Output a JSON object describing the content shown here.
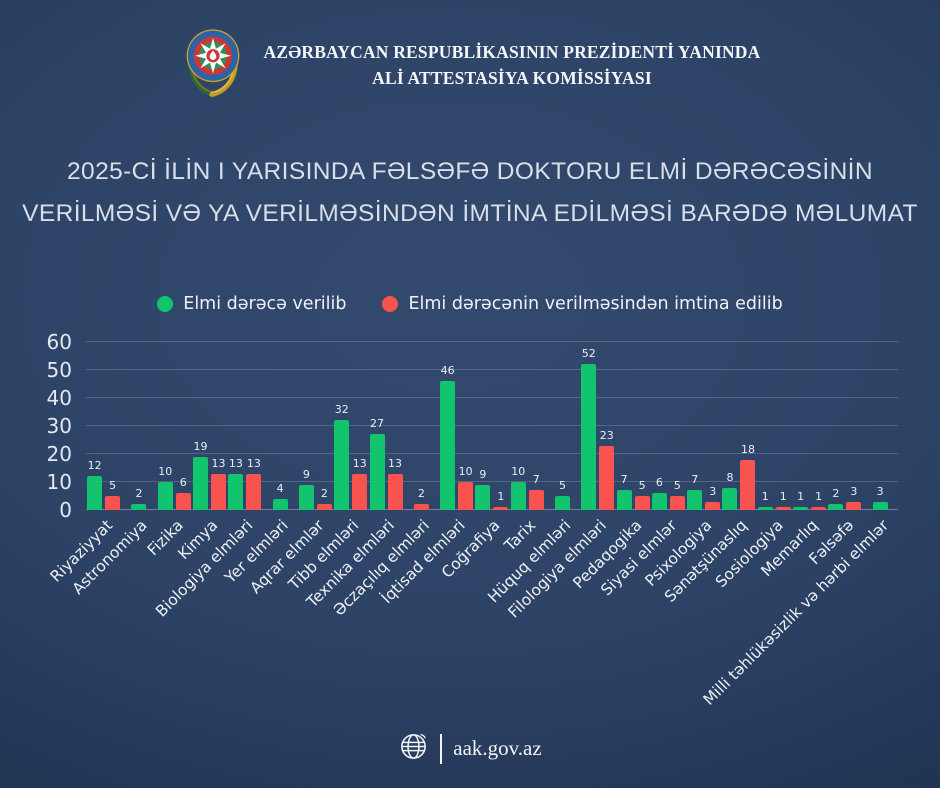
{
  "header": {
    "org_line1": "AZƏRBAYCAN RESPUBLİKASININ PREZİDENTİ YANINDA",
    "org_line2": "ALİ ATTESTASİYA KOMİSSİYASI",
    "emblem_icon": "azerbaijan-state-emblem"
  },
  "title": {
    "line1": "2025-Cİ İLİN I YARISINDA FƏLSƏFƏ DOKTORU ELMİ DƏRƏCƏSİNİN",
    "line2": "VERİLMƏSİ VƏ YA VERİLMƏSİNDƏN İMTİNA EDİLMƏSİ BARƏDƏ MƏLUMAT"
  },
  "legend": {
    "awarded_label": "Elmi dərəcə verilib",
    "refused_label": "Elmi dərəcənin verilməsindən imtina edilib"
  },
  "colors": {
    "awarded_green": "#12c46d",
    "refused_red": "#f9534f",
    "background_center": "#33496e",
    "background_edge": "#13213c",
    "gridline": "rgba(255,255,255,0.17)",
    "text": "#eef1f6"
  },
  "chart_data": {
    "type": "bar",
    "title": "2025-Cİ İLİN I YARISINDA FƏLSƏFƏ DOKTORU ELMİ DƏRƏCƏSİNİN VERİLMƏSİ VƏ YA VERİLMƏSİNDƏN İMTİNA EDİLMƏSİ BARƏDƏ MƏLUMAT",
    "xlabel": "",
    "ylabel": "",
    "ylim": [
      0,
      60
    ],
    "y_ticks": [
      0,
      10,
      20,
      30,
      40,
      50,
      60
    ],
    "grid": true,
    "legend_position": "top",
    "value_labels": true,
    "categories": [
      "Riyaziyyat",
      "Astronomiya",
      "Fizika",
      "Kimya",
      "Biologiya elmləri",
      "Yer elmləri",
      "Aqrar elmlər",
      "Tibb elmləri",
      "Texnika elmləri",
      "Əczaçılıq elmləri",
      "İqtisad elmləri",
      "Coğrafiya",
      "Tarix",
      "Hüquq elmləri",
      "Filologiya elmləri",
      "Pedaqogika",
      "Siyasi elmlər",
      "Psixologiya",
      "Sənətşünaslıq",
      "Sosiologiya",
      "Memarlıq",
      "Fəlsəfə",
      "Milli təhlükəsizlik və hərbi elmlər"
    ],
    "series": [
      {
        "name": "Elmi dərəcə verilib",
        "color": "#12c46d",
        "values": [
          12,
          2,
          10,
          19,
          13,
          4,
          9,
          32,
          27,
          null,
          46,
          9,
          10,
          5,
          52,
          7,
          6,
          7,
          8,
          1,
          1,
          2,
          3
        ]
      },
      {
        "name": "Elmi dərəcənin verilməsindən imtina edilib",
        "color": "#f9534f",
        "values": [
          5,
          null,
          6,
          13,
          13,
          null,
          2,
          13,
          13,
          2,
          10,
          1,
          7,
          null,
          23,
          5,
          5,
          3,
          18,
          1,
          1,
          3,
          null
        ]
      }
    ]
  },
  "footer": {
    "website": "aak.gov.az",
    "globe_icon": "globe-icon"
  }
}
